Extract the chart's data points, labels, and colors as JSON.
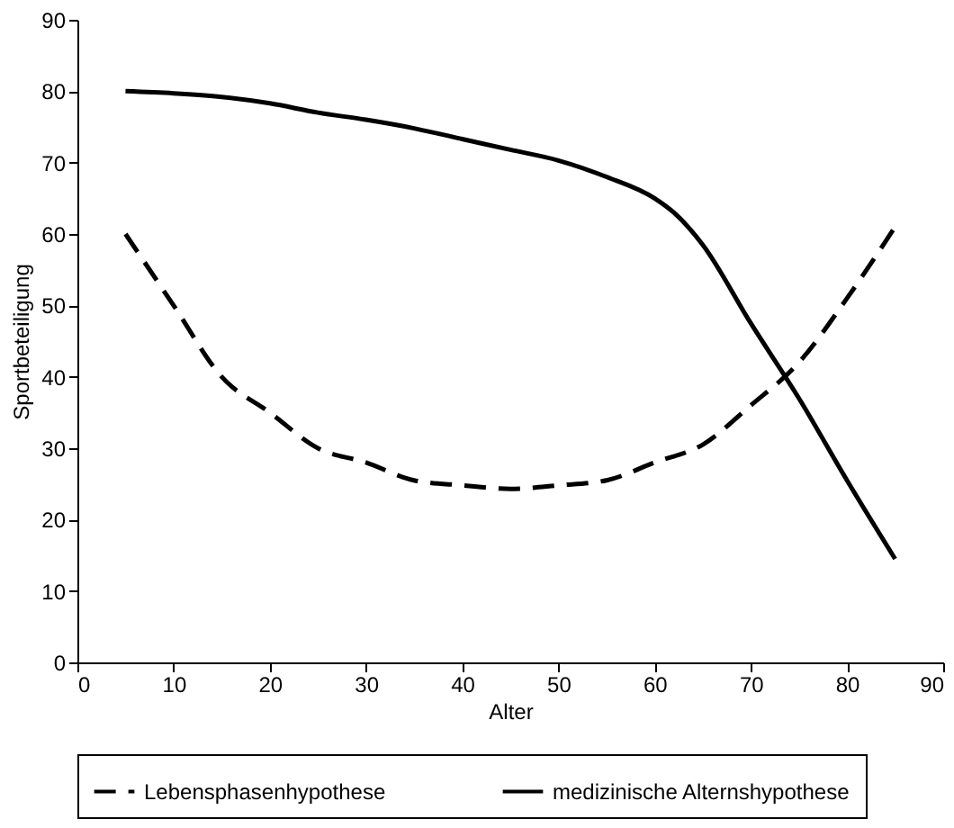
{
  "chart_data": {
    "type": "line",
    "xlabel": "Alter",
    "ylabel": "Sportbeteiligung",
    "xlim": [
      0,
      90
    ],
    "xticks": [
      0,
      10,
      20,
      30,
      40,
      50,
      60,
      70,
      80,
      90
    ],
    "ylim": [
      0,
      90
    ],
    "yticks": [
      0,
      10,
      20,
      30,
      40,
      50,
      60,
      70,
      80,
      90
    ],
    "grid": false,
    "legend": "bottom",
    "marker": "none",
    "series": [
      {
        "name": "Lebensphasenhypothese",
        "color": "#000000",
        "line_style": "dashed",
        "x": [
          5,
          10,
          15,
          20,
          25,
          30,
          35,
          40,
          45,
          50,
          55,
          60,
          65,
          70,
          75,
          80,
          85
        ],
        "values": [
          60,
          50,
          40,
          35,
          30,
          28,
          25.5,
          24.8,
          24.3,
          24.8,
          25.5,
          28,
          30.5,
          36,
          42,
          51,
          61
        ]
      },
      {
        "name": "medizinische Alternshypothese",
        "color": "#000000",
        "line_style": "solid",
        "x": [
          5,
          10,
          15,
          20,
          25,
          30,
          35,
          40,
          45,
          50,
          55,
          60,
          62,
          65,
          70,
          75,
          80,
          85
        ],
        "values": [
          80,
          79.7,
          79.2,
          78.3,
          77,
          76,
          74.8,
          73.3,
          71.8,
          70.3,
          68,
          65,
          63,
          58.5,
          47.5,
          37,
          25.5,
          14.5
        ]
      }
    ]
  }
}
